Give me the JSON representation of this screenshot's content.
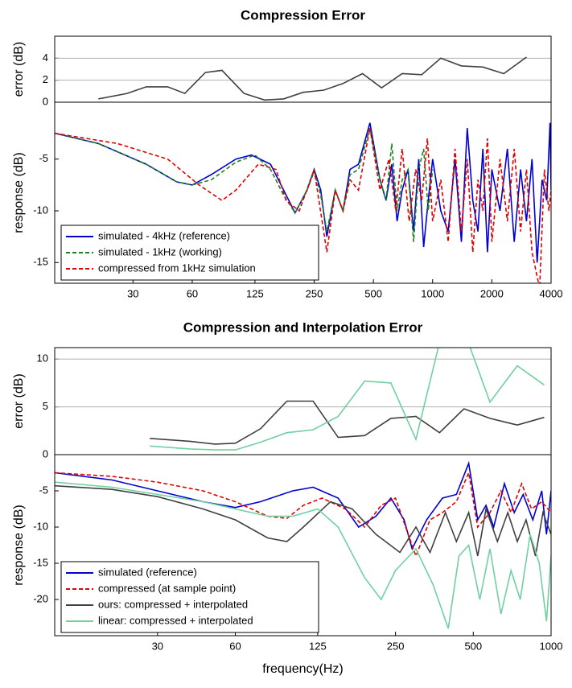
{
  "chart_data": [
    {
      "type": "line",
      "title": "Compression Error",
      "ylabel": "error (dB)",
      "xscale": "log",
      "xlim": [
        12,
        4000
      ],
      "ylim": [
        0,
        6
      ],
      "yticks": [
        0,
        2,
        4
      ],
      "grid": true,
      "series": [
        {
          "color": "#404040",
          "linestyle": "solid",
          "x": [
            20,
            28,
            35,
            45,
            55,
            70,
            85,
            110,
            140,
            175,
            220,
            280,
            350,
            440,
            550,
            700,
            880,
            1100,
            1400,
            1800,
            2300,
            3000
          ],
          "values": [
            0.3,
            0.8,
            1.4,
            1.4,
            0.8,
            2.7,
            2.9,
            0.8,
            0.2,
            0.3,
            0.9,
            1.1,
            1.7,
            2.6,
            1.3,
            2.6,
            2.5,
            4.0,
            3.3,
            3.2,
            2.6,
            4.1
          ]
        }
      ]
    },
    {
      "type": "line",
      "ylabel": "response (dB)",
      "xscale": "log",
      "xlim": [
        12,
        4000
      ],
      "ylim": [
        -17,
        0.5
      ],
      "xticks": [
        30,
        60,
        125,
        250,
        500,
        1000,
        2000,
        4000
      ],
      "yticks": [
        -15,
        -10,
        -5
      ],
      "grid": false,
      "legend": "lower left",
      "series": [
        {
          "name": "simulated - 4kHz (reference)",
          "color": "#0000d0",
          "linestyle": "solid",
          "x": [
            12,
            20,
            35,
            50,
            60,
            75,
            100,
            120,
            150,
            175,
            200,
            230,
            250,
            270,
            290,
            320,
            350,
            380,
            420,
            480,
            540,
            580,
            620,
            660,
            700,
            750,
            800,
            850,
            900,
            950,
            1000,
            1100,
            1200,
            1300,
            1400,
            1500,
            1600,
            1700,
            1800,
            1900,
            2000,
            2200,
            2400,
            2600,
            2800,
            3000,
            3200,
            3400,
            3600,
            3800,
            3950,
            4000
          ],
          "values": [
            -2.5,
            -3.5,
            -5.5,
            -7.2,
            -7.5,
            -6.5,
            -5,
            -4.6,
            -5.5,
            -8,
            -10.2,
            -8,
            -6,
            -8,
            -12.5,
            -8,
            -10,
            -6,
            -5.5,
            -1.5,
            -7,
            -9,
            -5.5,
            -11,
            -8,
            -6,
            -12,
            -5,
            -13.5,
            -9,
            -5,
            -10,
            -12,
            -5,
            -13,
            -2,
            -9,
            -12,
            -4,
            -14,
            -6,
            -10,
            -4,
            -13,
            -6,
            -11,
            -5,
            -15,
            -7,
            -9,
            -1.5,
            -8
          ]
        },
        {
          "name": "simulated - 1kHz (working)",
          "color": "#208020",
          "linestyle": "dashed",
          "x": [
            12,
            20,
            35,
            50,
            60,
            75,
            100,
            125,
            150,
            175,
            200,
            230,
            250,
            270,
            290,
            320,
            350,
            380,
            420,
            480,
            540,
            580,
            620,
            660,
            700,
            750,
            800,
            850,
            900,
            950,
            1000
          ],
          "values": [
            -2.5,
            -3.5,
            -5.5,
            -7.2,
            -7.5,
            -7,
            -5.3,
            -4.6,
            -6,
            -8.5,
            -10.2,
            -8,
            -6.2,
            -8.5,
            -12,
            -8,
            -10,
            -6.5,
            -6,
            -2,
            -7,
            -9,
            -3.5,
            -10,
            -7,
            -6,
            -13,
            -6,
            -4,
            -10,
            -6
          ]
        },
        {
          "name": "compressed from 1kHz simulation",
          "color": "#e00000",
          "linestyle": "dashed",
          "x": [
            12,
            25,
            45,
            65,
            85,
            100,
            130,
            160,
            180,
            210,
            250,
            290,
            320,
            350,
            380,
            420,
            480,
            540,
            600,
            650,
            700,
            760,
            820,
            880,
            940,
            1000,
            1100,
            1200,
            1300,
            1400,
            1500,
            1600,
            1700,
            1800,
            1900,
            2000,
            2200,
            2400,
            2600,
            2800,
            3000,
            3200,
            3500,
            3700,
            3900,
            4000
          ],
          "values": [
            -2.5,
            -3.5,
            -5,
            -7.5,
            -9,
            -8,
            -5.5,
            -6,
            -9,
            -10,
            -6,
            -14,
            -8,
            -10,
            -7,
            -8,
            -2,
            -8,
            -5,
            -10,
            -4,
            -11,
            -6,
            -9,
            -3,
            -11,
            -7,
            -13,
            -4,
            -12,
            -5,
            -14,
            -7,
            -10,
            -3,
            -13,
            -5,
            -11,
            -4,
            -12,
            -6,
            -14,
            -17.5,
            -6,
            -10,
            -8
          ]
        }
      ]
    },
    {
      "type": "line",
      "title": "Compression and Interpolation Error",
      "ylabel": "error (dB)",
      "xscale": "log",
      "xlim": [
        12,
        1000
      ],
      "ylim": [
        0,
        11.2
      ],
      "yticks": [
        0,
        5,
        10
      ],
      "grid": true,
      "series": [
        {
          "color": "#404040",
          "linestyle": "solid",
          "x": [
            28,
            40,
            50,
            60,
            75,
            95,
            120,
            150,
            190,
            240,
            300,
            370,
            460,
            580,
            740,
            940
          ],
          "values": [
            1.7,
            1.4,
            1.1,
            1.2,
            2.7,
            5.6,
            5.6,
            1.8,
            2.0,
            3.8,
            4.0,
            2.3,
            4.8,
            3.8,
            3.1,
            3.9
          ]
        },
        {
          "color": "#70d0a0",
          "linestyle": "solid",
          "x": [
            28,
            40,
            50,
            60,
            75,
            95,
            120,
            150,
            190,
            240,
            300,
            380,
            460,
            580,
            740,
            940
          ],
          "values": [
            0.9,
            0.6,
            0.5,
            0.5,
            1.3,
            2.3,
            2.6,
            4.0,
            7.7,
            7.5,
            1.6,
            13,
            13,
            5.5,
            9.3,
            7.3
          ]
        }
      ]
    },
    {
      "type": "line",
      "ylabel": "response (dB)",
      "xlabel": "frequency(Hz)",
      "xscale": "log",
      "xlim": [
        12,
        1000
      ],
      "ylim": [
        -25,
        0
      ],
      "xticks": [
        30,
        60,
        125,
        250,
        500,
        1000
      ],
      "yticks": [
        -20,
        -15,
        -10,
        -5
      ],
      "grid": false,
      "legend": "lower left",
      "series": [
        {
          "name": "simulated (reference)",
          "color": "#0000d0",
          "linestyle": "solid",
          "x": [
            12,
            20,
            30,
            45,
            60,
            75,
            100,
            120,
            150,
            180,
            210,
            240,
            270,
            290,
            330,
            380,
            430,
            480,
            520,
            560,
            600,
            660,
            720,
            780,
            850,
            920,
            960,
            1000
          ],
          "values": [
            -2.5,
            -3.5,
            -5,
            -6.5,
            -7.3,
            -6.5,
            -5,
            -4.5,
            -6,
            -10,
            -8.5,
            -6,
            -9,
            -13,
            -9,
            -6,
            -5.5,
            -1.2,
            -9,
            -7,
            -10,
            -4,
            -8,
            -5.5,
            -9,
            -5,
            -11,
            -5
          ]
        },
        {
          "name": "compressed (at sample point)",
          "color": "#e00000",
          "linestyle": "dashed",
          "x": [
            12,
            20,
            30,
            45,
            60,
            80,
            95,
            110,
            130,
            160,
            190,
            220,
            250,
            280,
            300,
            340,
            380,
            430,
            480,
            520,
            580,
            640,
            700,
            770,
            840,
            920,
            1000
          ],
          "values": [
            -2.5,
            -3,
            -3.8,
            -5,
            -6.5,
            -8.5,
            -8.8,
            -7,
            -6,
            -7.5,
            -10,
            -7,
            -6,
            -11,
            -14,
            -9,
            -8,
            -6.5,
            -2.5,
            -10,
            -8,
            -5,
            -8,
            -4,
            -7.5,
            -6.5,
            -8
          ]
        },
        {
          "name": "ours: compressed + interpolated",
          "color": "#404040",
          "linestyle": "solid",
          "x": [
            12,
            20,
            30,
            45,
            60,
            80,
            95,
            110,
            140,
            170,
            210,
            260,
            300,
            340,
            390,
            430,
            480,
            520,
            560,
            620,
            680,
            740,
            800,
            870,
            930,
            1000
          ],
          "values": [
            -4.3,
            -4.8,
            -5.8,
            -7.5,
            -9,
            -11.5,
            -12,
            -10,
            -6.5,
            -7.5,
            -11,
            -13.5,
            -10,
            -13.5,
            -8,
            -12,
            -8,
            -14,
            -7.5,
            -12,
            -8,
            -12,
            -9,
            -14,
            -8,
            -11
          ]
        },
        {
          "name": "linear: compressed + interpolated",
          "color": "#70d0a0",
          "linestyle": "solid",
          "x": [
            12,
            20,
            30,
            45,
            60,
            80,
            100,
            125,
            150,
            190,
            220,
            250,
            300,
            350,
            400,
            440,
            480,
            530,
            580,
            640,
            700,
            760,
            830,
            900,
            960,
            1000
          ],
          "values": [
            -3.8,
            -4.5,
            -5.5,
            -6.5,
            -7.5,
            -8.5,
            -8.5,
            -7.5,
            -10,
            -17,
            -20,
            -16,
            -13,
            -18,
            -24,
            -14,
            -12.5,
            -20,
            -13,
            -22,
            -16,
            -20,
            -11,
            -15,
            -23,
            -14
          ]
        }
      ]
    }
  ]
}
